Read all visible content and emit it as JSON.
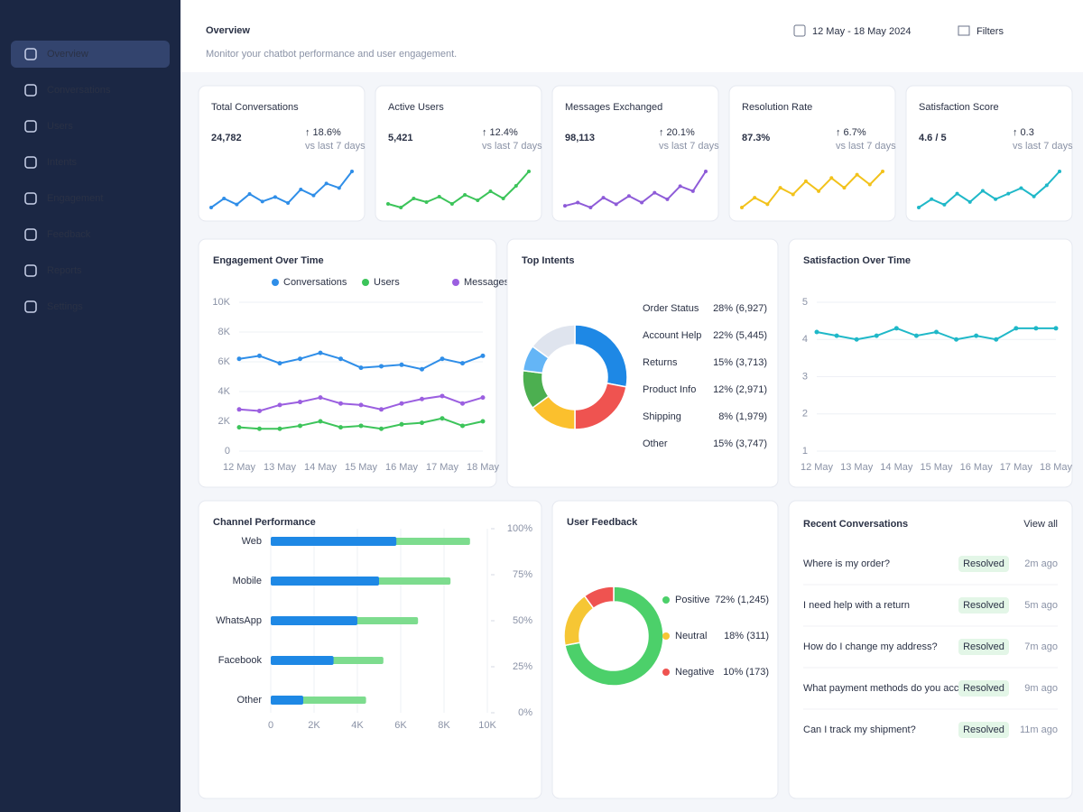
{
  "sidebar": {
    "items": [
      "Overview",
      "Conversations",
      "Users",
      "Intents",
      "Engagement",
      "Feedback",
      "Reports",
      "Settings"
    ],
    "active": 0
  },
  "header": {
    "title": "Overview",
    "subtitle": "Monitor your chatbot performance and user engagement.",
    "date_range": "12 May - 18 May 2024",
    "filters": "Filters"
  },
  "kpis": [
    {
      "label": "Total Conversations",
      "value": "24,782",
      "change": "↑ 18.6%",
      "note": "vs last 7 days",
      "color": "#2f8ee8",
      "trend": [
        3.2,
        3.8,
        3.4,
        4.1,
        3.6,
        3.9,
        3.5,
        4.4,
        4.0,
        4.8,
        4.5,
        5.6
      ]
    },
    {
      "label": "Active Users",
      "value": "5,421",
      "change": "↑ 12.4%",
      "note": "vs last 7 days",
      "color": "#3cc45a",
      "trend": [
        3.6,
        3.4,
        3.9,
        3.7,
        4.0,
        3.6,
        4.1,
        3.8,
        4.3,
        3.9,
        4.6,
        5.4
      ]
    },
    {
      "label": "Messages Exchanged",
      "value": "98,113",
      "change": "↑ 20.1%",
      "note": "vs last 7 days",
      "color": "#8e5bd8",
      "trend": [
        3.4,
        3.6,
        3.3,
        3.9,
        3.5,
        4.0,
        3.6,
        4.2,
        3.8,
        4.6,
        4.3,
        5.5
      ]
    },
    {
      "label": "Resolution Rate",
      "value": "87.3%",
      "change": "↑ 6.7%",
      "note": "vs last 7 days",
      "color": "#f2c21b",
      "trend": [
        4.0,
        4.3,
        4.1,
        4.6,
        4.4,
        4.8,
        4.5,
        4.9,
        4.6,
        5.0,
        4.7,
        5.1
      ]
    },
    {
      "label": "Satisfaction Score",
      "value": "4.6 / 5",
      "change": "↑ 0.3",
      "note": "vs last 7 days",
      "color": "#1fb8c8",
      "trend": [
        4.0,
        4.3,
        4.1,
        4.5,
        4.2,
        4.6,
        4.3,
        4.5,
        4.7,
        4.4,
        4.8,
        5.3
      ]
    }
  ],
  "engagement": {
    "type": "line",
    "title": "Engagement Over Time",
    "categories": [
      "12 May",
      null,
      "13 May",
      null,
      "14 May",
      null,
      "15 May",
      null,
      "16 May",
      null,
      "17 May",
      null,
      "18 May"
    ],
    "series": [
      {
        "name": "Conversations",
        "color": "#2f8ee8",
        "values": [
          6200,
          6400,
          5900,
          6200,
          6600,
          6200,
          5600,
          5700,
          5800,
          5500,
          6200,
          5900,
          6400
        ]
      },
      {
        "name": "Users",
        "color": "#3cc45a",
        "values": [
          1600,
          1500,
          1500,
          1700,
          2000,
          1600,
          1700,
          1500,
          1800,
          1900,
          2200,
          1700,
          2000
        ]
      },
      {
        "name": "Messages",
        "color": "#9b5fe0",
        "values": [
          2800,
          2700,
          3100,
          3300,
          3600,
          3200,
          3100,
          2800,
          3200,
          3500,
          3700,
          3200,
          3600
        ]
      }
    ],
    "ylim": [
      0,
      10000
    ],
    "yticks": [
      0,
      {
        "value": 2000,
        "label": "2K"
      },
      {
        "value": 4000,
        "label": "4K"
      },
      {
        "value": 6000,
        "label": "6K"
      },
      {
        "value": 8000,
        "label": "8K"
      },
      {
        "value": 10000,
        "label": "10K"
      }
    ]
  },
  "intents": {
    "type": "pie",
    "title": "Top Intents",
    "items": [
      {
        "label": "Order Status",
        "value": 28,
        "value_label": "28% (6,927)",
        "color": "#1e88e5"
      },
      {
        "label": "Account Help",
        "value": 22,
        "value_label": "22% (5,445)",
        "color": "#ef5350"
      },
      {
        "label": "Returns",
        "value": 15,
        "value_label": "15% (3,713)",
        "color": "#fbc02d"
      },
      {
        "label": "Product Info",
        "value": 12,
        "value_label": "12% (2,971)",
        "color": "#4caf50"
      },
      {
        "label": "Shipping",
        "value": 8,
        "value_label": "8% (1,979)",
        "color": "#64b5f6"
      },
      {
        "label": "Other",
        "value": 15,
        "value_label": "15% (3,747)",
        "color": "#dfe4ee"
      }
    ]
  },
  "satisfaction": {
    "type": "line",
    "title": "Satisfaction Over Time",
    "categories": [
      "12 May",
      null,
      "13 May",
      null,
      "14 May",
      null,
      "15 May",
      null,
      "16 May",
      null,
      "17 May",
      null,
      "18 May"
    ],
    "series": [
      {
        "color": "#1fb8c8",
        "values": [
          4.2,
          4.1,
          4.0,
          4.1,
          4.3,
          4.1,
          4.2,
          4.0,
          4.1,
          4.0,
          4.3,
          4.3,
          4.3
        ]
      }
    ],
    "ylim": [
      1,
      5
    ],
    "yticks": [
      1,
      2,
      3,
      4,
      5
    ]
  },
  "channels": {
    "type": "bar",
    "title": "Channel Performance",
    "categories": [
      "Web",
      "Mobile",
      "WhatsApp",
      "Facebook",
      "Other"
    ],
    "series": [
      {
        "color": "#7ddc8e",
        "values": [
          9200,
          8300,
          6800,
          5200,
          4400
        ]
      },
      {
        "color": "#1e88e5",
        "values": [
          5800,
          5000,
          4000,
          2900,
          1500
        ]
      }
    ],
    "xlim": [
      0,
      10000
    ],
    "xticks": [
      0,
      {
        "value": 2000,
        "label": "2K"
      },
      {
        "value": 4000,
        "label": "4K"
      },
      {
        "value": 6000,
        "label": "6K"
      },
      {
        "value": 8000,
        "label": "8K"
      },
      {
        "value": 10000,
        "label": "10K"
      }
    ],
    "y2lim": [
      0,
      100
    ],
    "y2ticks": [
      {
        "value": 100,
        "label": "100%"
      },
      {
        "value": 75,
        "label": "75%"
      },
      {
        "value": 50,
        "label": "50%"
      },
      {
        "value": 25,
        "label": "25%"
      },
      {
        "value": 0,
        "label": "0%"
      }
    ]
  },
  "feedback": {
    "type": "pie",
    "title": "User Feedback",
    "items": [
      {
        "label": "Positive",
        "value": 72,
        "value_label": "72% (1,245)",
        "color": "#4cd06a"
      },
      {
        "label": "Neutral",
        "value": 18,
        "value_label": "18% (311)",
        "color": "#f6c634"
      },
      {
        "label": "Negative",
        "value": 10,
        "value_label": "10% (173)",
        "color": "#ef5350"
      }
    ]
  },
  "recent": {
    "title": "Recent Conversations",
    "link": "View all",
    "rows": [
      [
        "Where is my order?",
        "Resolved",
        "2m ago"
      ],
      [
        "I need help with a return",
        "Resolved",
        "5m ago"
      ],
      [
        "How do I change my address?",
        "Resolved",
        "7m ago"
      ],
      [
        "What payment methods do you accept?",
        "Resolved",
        "9m ago"
      ],
      [
        "Can I track my shipment?",
        "Resolved",
        "11m ago"
      ]
    ]
  }
}
